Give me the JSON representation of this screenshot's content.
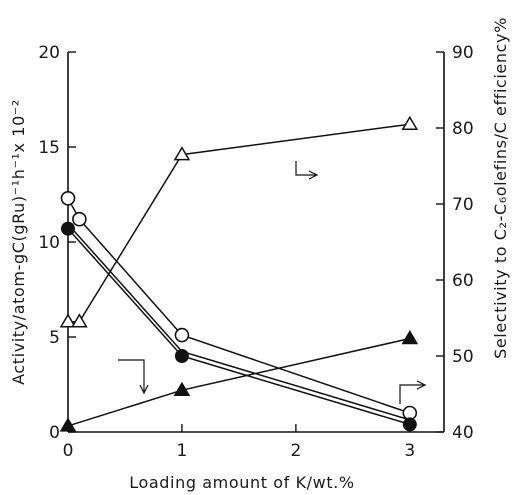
{
  "chart_data": {
    "type": "line",
    "xlabel": "Loading amount of K/wt.%",
    "ylabel_left": "Activity/atom-gC(gRu)⁻¹h⁻¹x 10⁻²",
    "ylabel_right": "Selectivity to C₂-C₆olefins/C efficiency%",
    "xlim": [
      0,
      3.3
    ],
    "xticks": [
      0,
      1,
      2,
      3
    ],
    "ylim_left": [
      0,
      20
    ],
    "yticks_left": [
      0,
      5,
      10,
      15,
      20
    ],
    "ylim_right": [
      40,
      90
    ],
    "yticks_right": [
      40,
      50,
      60,
      70,
      80,
      90
    ],
    "grid": false,
    "series": [
      {
        "marker": "open-circle",
        "axis": "left",
        "x": [
          0,
          0.1,
          1,
          3
        ],
        "y": [
          12.3,
          11.2,
          5.1,
          1.0
        ]
      },
      {
        "marker": "filled-circle",
        "axis": "left",
        "x": [
          0,
          1,
          3
        ],
        "y": [
          10.7,
          4.0,
          0.4
        ]
      },
      {
        "marker": "open-triangle",
        "axis": "right",
        "x": [
          0,
          0.1,
          1,
          3
        ],
        "y": [
          54.5,
          54.5,
          76.5,
          80.5
        ]
      },
      {
        "marker": "filled-triangle",
        "axis": "right",
        "x": [
          0,
          1,
          3
        ],
        "y": [
          40.8,
          45.5,
          52.3
        ]
      }
    ]
  }
}
